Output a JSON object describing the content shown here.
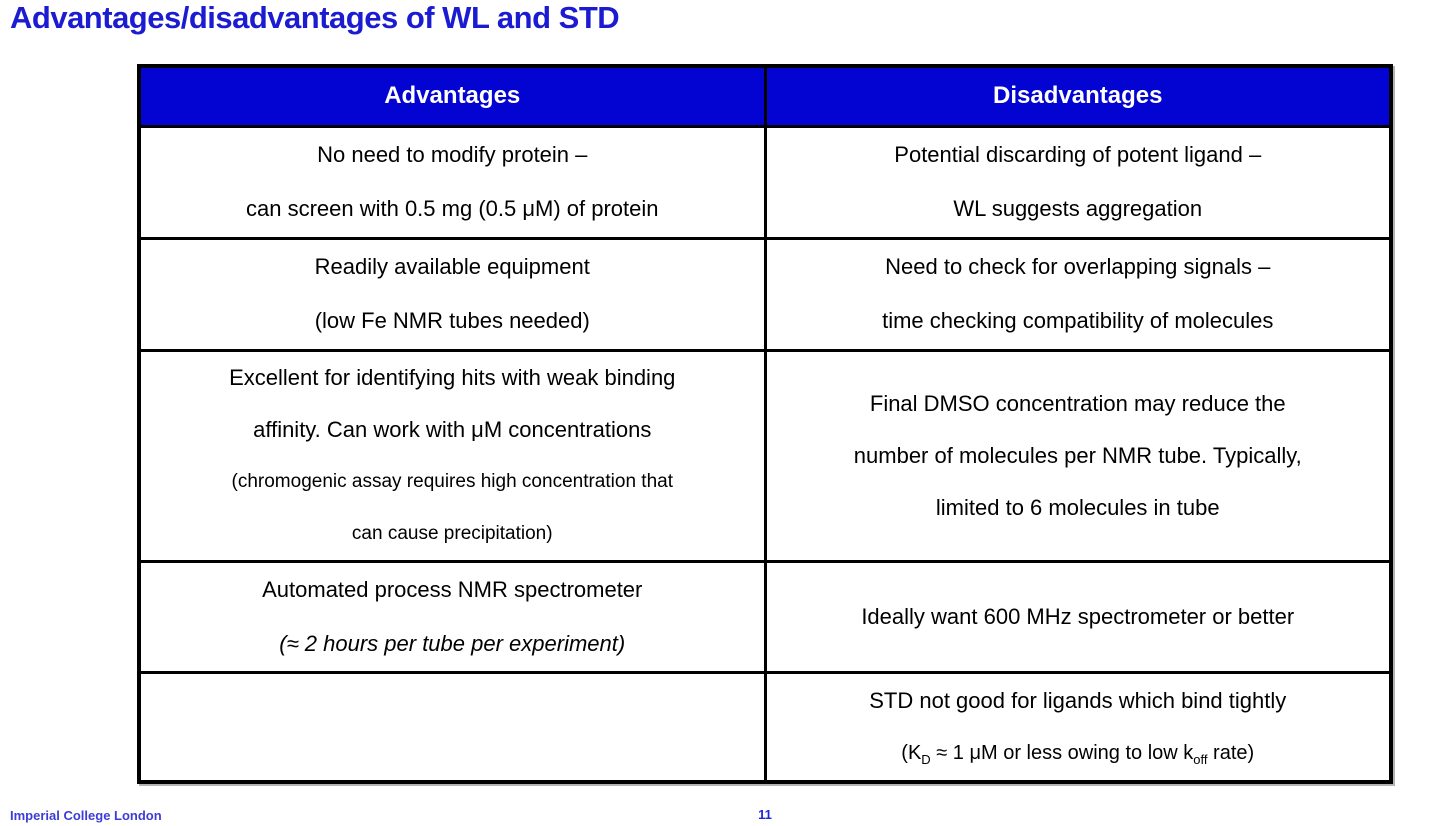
{
  "title": "Advantages/disadvantages of WL and STD",
  "colors": {
    "header_bg": "#0404d2",
    "title_text": "#1b1bd2",
    "footer_text": "#3c3cd8",
    "page_num_text": "#2424e0"
  },
  "table": {
    "header": {
      "advantages": "Advantages",
      "disadvantages": "Disadvantages"
    },
    "row1": {
      "adv": [
        "No need to modify protein –",
        "can screen with 0.5 mg (0.5 μM) of protein"
      ],
      "dis": [
        "Potential discarding of potent ligand –",
        "WL suggests aggregation"
      ]
    },
    "row2": {
      "adv": [
        "Readily available equipment",
        "(low Fe NMR tubes needed)"
      ],
      "dis": [
        "Need to check for overlapping signals –",
        "time checking compatibility of molecules"
      ]
    },
    "row3": {
      "adv": [
        "Excellent for identifying hits with weak binding",
        "affinity. Can work with μM concentrations",
        "(chromogenic assay requires high concentration that",
        "can cause precipitation)"
      ],
      "dis": [
        "Final DMSO concentration may reduce the",
        "number of molecules per NMR tube. Typically,",
        "limited to 6 molecules in tube"
      ]
    },
    "row4": {
      "adv": [
        "Automated process NMR spectrometer",
        "(≈ 2 hours per tube per experiment)"
      ],
      "dis": [
        "Ideally want 600 MHz spectrometer or better"
      ]
    },
    "row5": {
      "adv": [],
      "dis_line1": "STD not good for ligands which bind tightly",
      "dis_line2": {
        "p0": "(K",
        "sub1": "D",
        "p1": " ≈ 1 μM or less owing to low k",
        "sub2": "off",
        "p2": " rate)"
      }
    }
  },
  "footer": {
    "org": "Imperial College London",
    "page_number": "11"
  }
}
